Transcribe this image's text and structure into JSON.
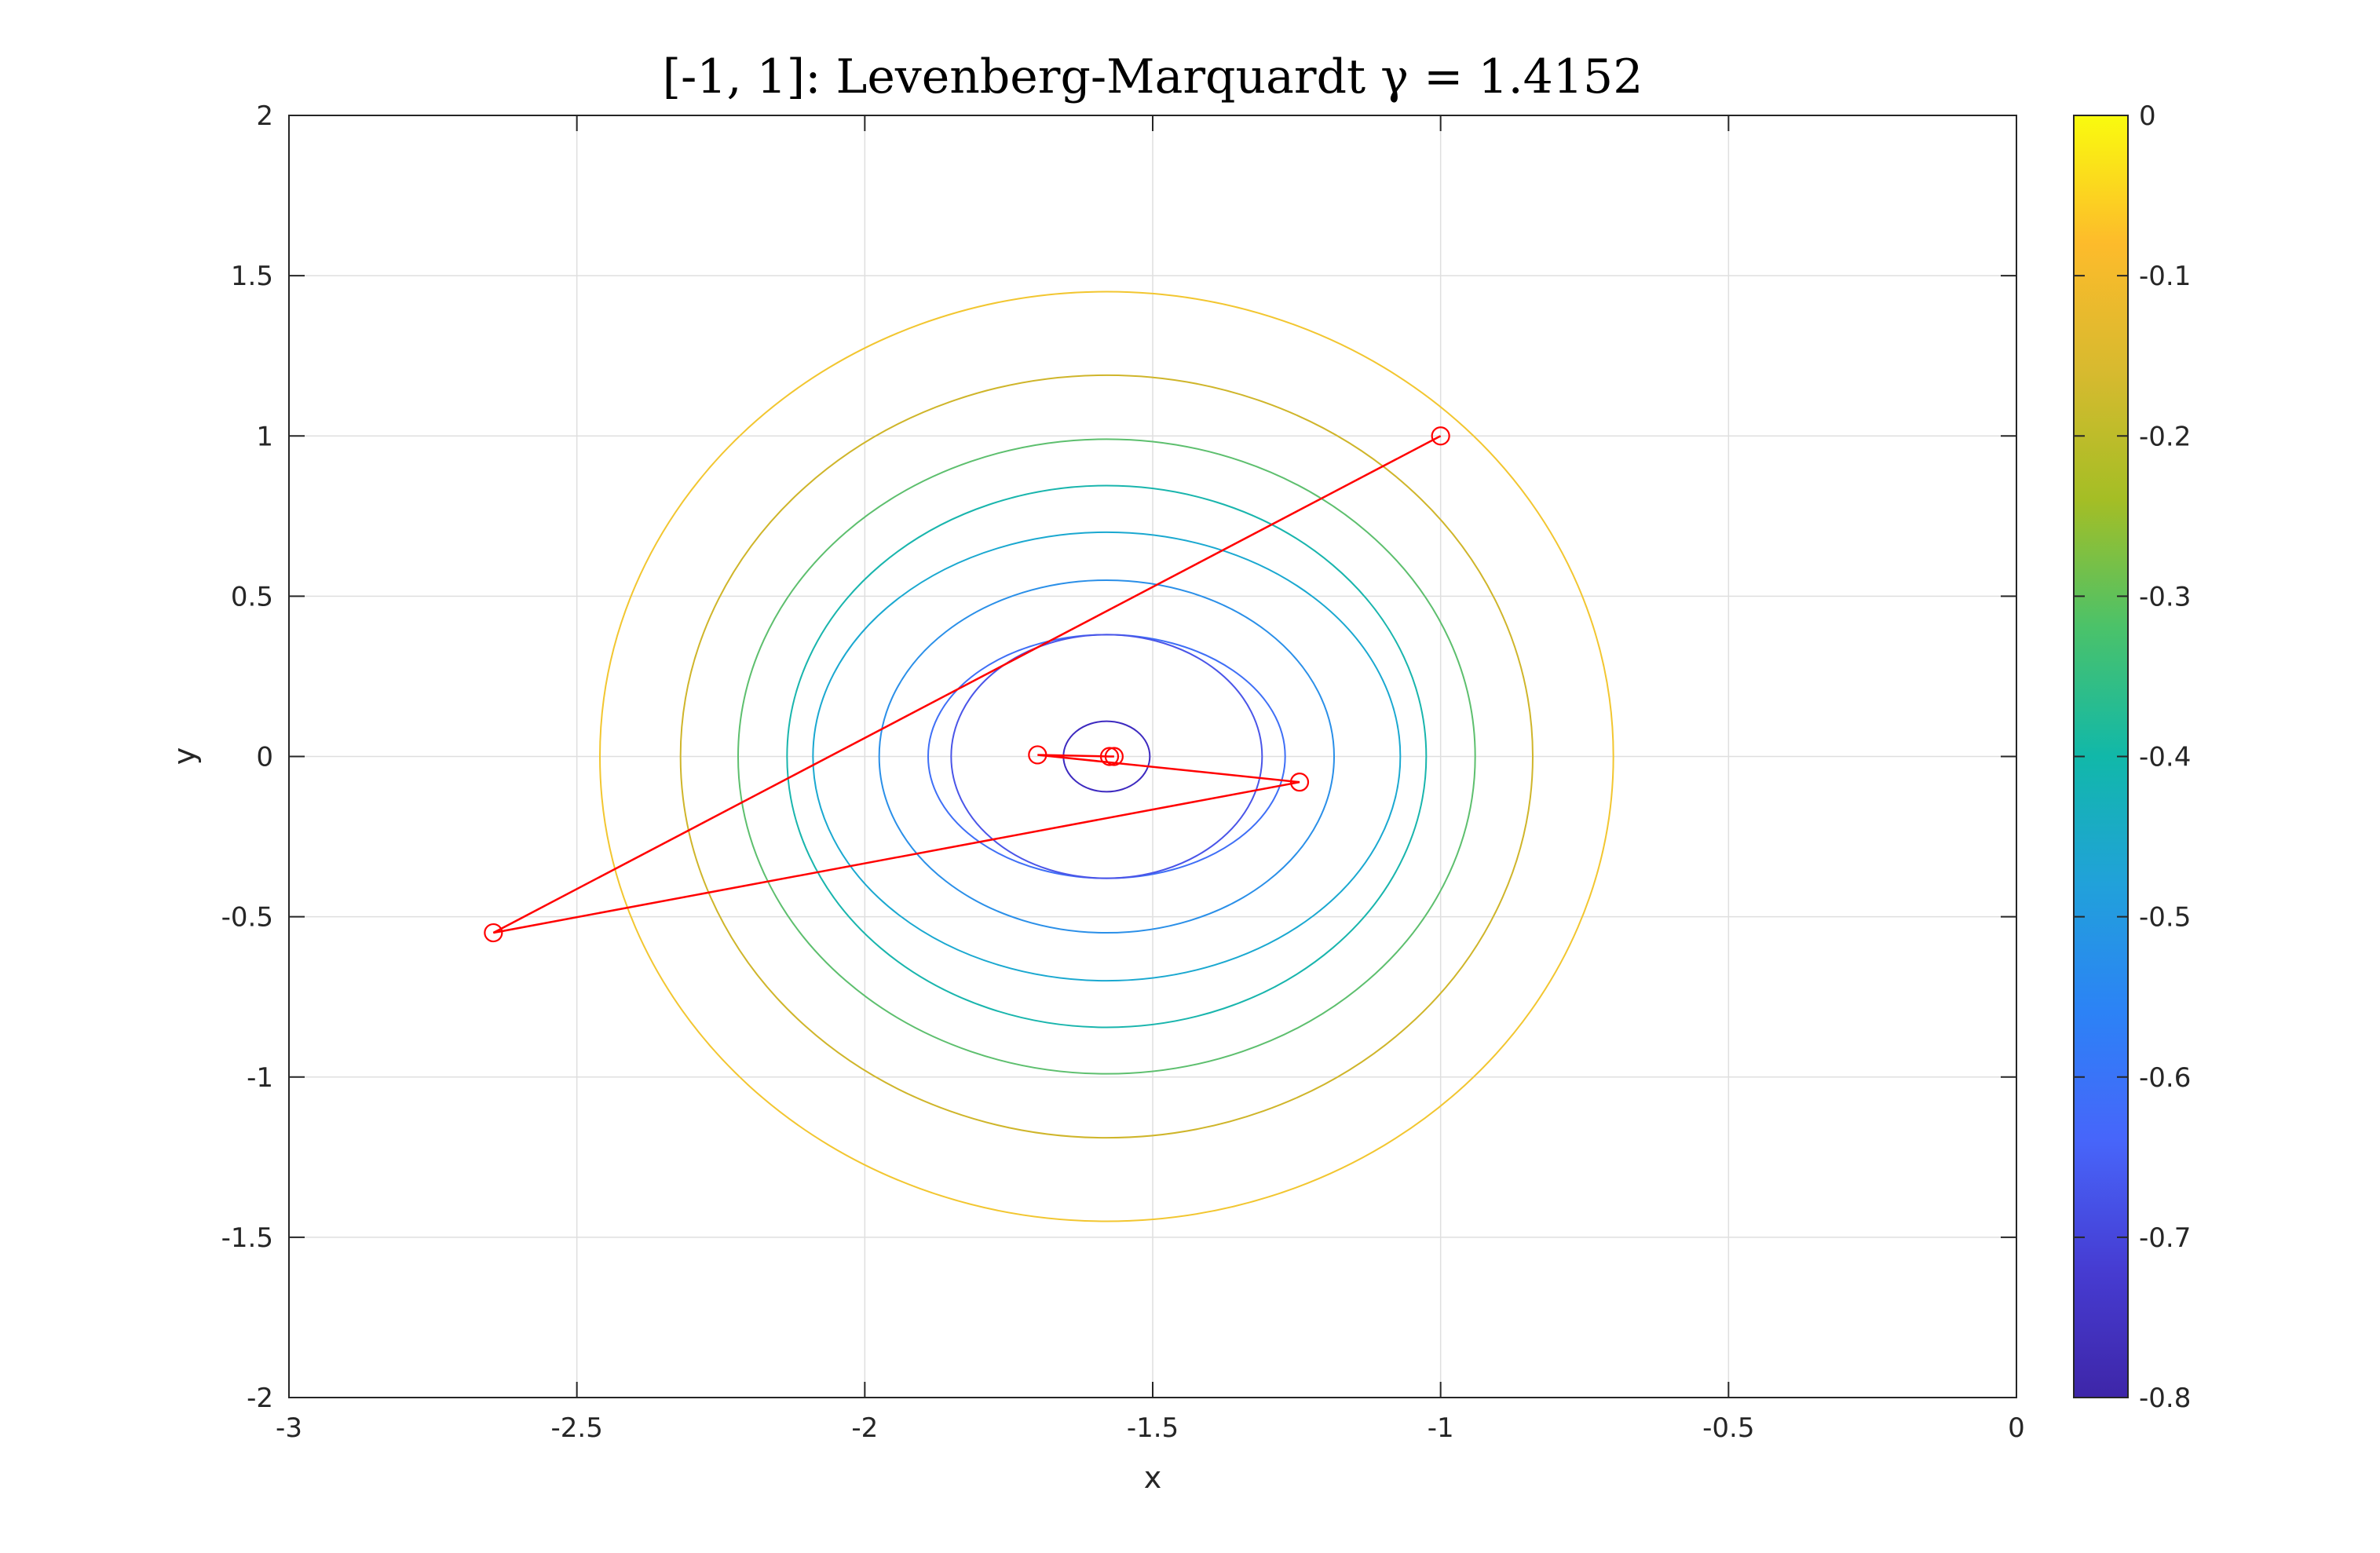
{
  "chart_data": {
    "type": "contour",
    "title": "[-1, 1]: Levenberg-Marquardt γ = 1.4152",
    "xlabel": "x",
    "ylabel": "y",
    "xlim": [
      -3,
      0
    ],
    "ylim": [
      -2,
      2
    ],
    "grid": true,
    "x_ticks": [
      "-3",
      "-2.5",
      "-2",
      "-1.5",
      "-1",
      "-0.5",
      "0"
    ],
    "x_tick_values": [
      -3,
      -2.5,
      -2,
      -1.5,
      -1,
      -0.5,
      0
    ],
    "y_ticks": [
      "-2",
      "-1.5",
      "-1",
      "-0.5",
      "0",
      "0.5",
      "1",
      "1.5",
      "2"
    ],
    "y_tick_values": [
      -2,
      -1.5,
      -1,
      -0.5,
      0,
      0.5,
      1,
      1.5,
      2
    ],
    "colorbar": {
      "placement": "right",
      "limits": [
        -0.8,
        0
      ],
      "ticks": [
        "0",
        "-0.1",
        "-0.2",
        "-0.3",
        "-0.4",
        "-0.5",
        "-0.6",
        "-0.7",
        "-0.8"
      ],
      "tick_values": [
        0,
        -0.1,
        -0.2,
        -0.3,
        -0.4,
        -0.5,
        -0.6,
        -0.7,
        -0.8
      ],
      "stops": [
        "#f9fb0e",
        "#fdbb2b",
        "#d7ba2f",
        "#a4be25",
        "#4ac26a",
        "#11b8a9",
        "#21a1da",
        "#2c82f6",
        "#4765fa",
        "#463cd2",
        "#3e26a8"
      ]
    },
    "contours": [
      {
        "level": -0.05,
        "cx": -1.58,
        "cy": 0,
        "rx": 0.88,
        "ry_top": 1.45,
        "ry_bottom": 1.45,
        "color": "#f2c630"
      },
      {
        "level": -0.15,
        "cx": -1.58,
        "cy": 0,
        "rx": 0.74,
        "ry_top": 1.19,
        "ry_bottom": 1.19,
        "color": "#cfb52a"
      },
      {
        "level": -0.25,
        "cx": -1.58,
        "cy": 0,
        "rx": 0.64,
        "ry_top": 0.99,
        "ry_bottom": 0.99,
        "color": "#5dbf6e"
      },
      {
        "level": -0.35,
        "cx": -1.58,
        "cy": 0,
        "rx": 0.555,
        "ry_top": 0.845,
        "ry_bottom": 0.845,
        "color": "#19b5ad"
      },
      {
        "level": -0.45,
        "cx": -1.58,
        "cy": 0,
        "rx": 0.51,
        "ry_top": 0.7,
        "ry_bottom": 0.7,
        "color": "#1aa8d0"
      },
      {
        "level": -0.55,
        "cx": -1.58,
        "cy": 0,
        "rx": 0.395,
        "ry_top": 0.55,
        "ry_bottom": 0.55,
        "color": "#2a8fe8"
      },
      {
        "level": -0.65,
        "cx": -1.58,
        "cy": 0,
        "rx": 0.31,
        "ry_top": 0.38,
        "ry_bottom": 0.38,
        "color": "#3f6ff6"
      },
      {
        "level": -0.75,
        "cx": -1.58,
        "cy": 0,
        "rx": 0.27,
        "ry_top": 0.38,
        "ry_bottom": 0.38,
        "color": "#4a55e8"
      },
      {
        "level": -0.78,
        "cx": -1.58,
        "cy": 0,
        "rx": 0.075,
        "ry_top": 0.11,
        "ry_bottom": 0.11,
        "color": "#3d2ac0"
      }
    ],
    "series": [
      {
        "type": "line-markers",
        "color": "#ff0000",
        "x": [
          -1.0,
          -2.645,
          -1.245,
          -1.7,
          -1.575,
          -1.567
        ],
        "y": [
          1.0,
          -0.55,
          -0.08,
          0.005,
          0.0,
          0.0
        ]
      }
    ]
  }
}
